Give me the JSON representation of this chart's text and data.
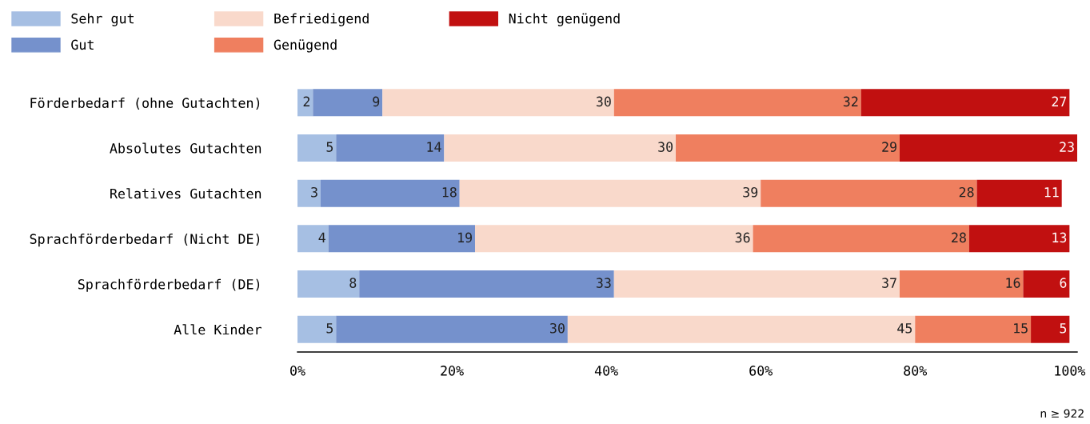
{
  "chart_data": {
    "type": "bar",
    "orientation": "horizontal",
    "stacked": true,
    "data_labels": true,
    "grid": false,
    "legend": "top left",
    "categories": [
      "Förderbedarf (ohne Gutachten)",
      "Absolutes Gutachten",
      "Relatives Gutachten",
      "Sprachförderbedarf (Nicht DE)",
      "Sprachförderbedarf (DE)",
      "Alle Kinder"
    ],
    "series": [
      {
        "name": "Sehr gut",
        "color": "#a6bfe3",
        "values": [
          2,
          5,
          3,
          4,
          8,
          5
        ]
      },
      {
        "name": "Gut",
        "color": "#7591cc",
        "values": [
          9,
          14,
          18,
          19,
          33,
          30
        ]
      },
      {
        "name": "Befriedigend",
        "color": "#f9d9cb",
        "values": [
          30,
          30,
          39,
          36,
          37,
          45
        ]
      },
      {
        "name": "Genügend",
        "color": "#ef7f5f",
        "values": [
          32,
          29,
          28,
          28,
          16,
          15
        ]
      },
      {
        "name": "Nicht genügend",
        "color": "#c11010",
        "values": [
          27,
          23,
          11,
          13,
          6,
          5
        ]
      }
    ],
    "xlim": [
      0,
      101
    ],
    "xticks": [
      {
        "value": 0,
        "label": "0%"
      },
      {
        "value": 20,
        "label": "20%"
      },
      {
        "value": 40,
        "label": "40%"
      },
      {
        "value": 60,
        "label": "60%"
      },
      {
        "value": 80,
        "label": "80%"
      },
      {
        "value": 100,
        "label": "100%"
      }
    ],
    "annotations": [
      "n ≥ 922"
    ]
  }
}
